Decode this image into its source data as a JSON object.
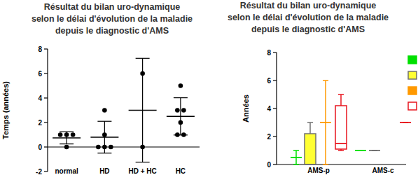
{
  "chart_data": [
    {
      "type": "dot_plot",
      "title": "Résultat du bilan uro-dynamique\nselon le délai d'évolution de la maladie\ndepuis le diagnostic d'AMS",
      "y_label": "Temps (années)",
      "categories": [
        "normal",
        "HD",
        "HD + HC",
        "HC"
      ],
      "points": [
        [
          1,
          1,
          1,
          0
        ],
        [
          3,
          1,
          0,
          0,
          0
        ],
        [
          6,
          0
        ],
        [
          5,
          3,
          3,
          2,
          1,
          1
        ]
      ],
      "means": [
        0.75,
        0.8,
        3,
        2.5
      ],
      "errors": [
        0.5,
        1.3,
        4.24,
        1.52
      ],
      "ylim": [
        -2,
        8
      ],
      "yticks": [
        -2,
        0,
        2,
        4,
        6,
        8
      ]
    },
    {
      "type": "box",
      "title": "Résultat du bilan uro-dynamique\nselon le délai d'évolution de la maladie\ndepuis le diagnostic d'AMS",
      "y_label": "Années",
      "categories": [
        "AMS-p",
        "AMS-c"
      ],
      "series": [
        {
          "color": "#00e000",
          "min": [
            0,
            1
          ],
          "q1": [
            0.5,
            1
          ],
          "median": [
            0.5,
            1
          ],
          "q3": [
            0.5,
            1
          ],
          "max": [
            1,
            1
          ]
        },
        {
          "color": "#ffff33",
          "min": [
            0,
            1
          ],
          "q1": [
            0,
            1
          ],
          "median": [
            0,
            1
          ],
          "q3": [
            2.2,
            1
          ],
          "max": [
            3,
            1
          ]
        },
        {
          "color": "#ff9900",
          "min": [
            0,
            null
          ],
          "q1": [
            3,
            null
          ],
          "median": [
            3,
            null
          ],
          "q3": [
            3,
            null
          ],
          "max": [
            6,
            null
          ]
        },
        {
          "color": "#e8141e",
          "min": [
            1,
            3
          ],
          "q1": [
            1.1,
            3
          ],
          "median": [
            1.5,
            3
          ],
          "q3": [
            4.2,
            3
          ],
          "max": [
            5,
            3
          ]
        }
      ],
      "ylim": [
        0,
        8
      ],
      "yticks": [
        0,
        2,
        4,
        6,
        8
      ]
    }
  ]
}
